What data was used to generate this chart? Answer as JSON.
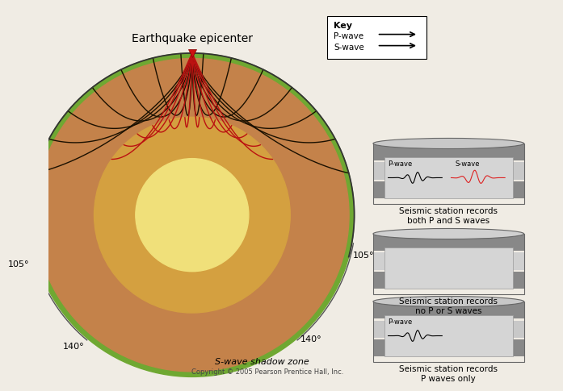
{
  "bg_color": "#f0ece4",
  "title": "Earthquake epicenter",
  "copyright": "Copyright © 2005 Pearson Prentice Hall, Inc.",
  "key_box": {
    "title": "Key",
    "p_wave_label": "P-wave",
    "s_wave_label": "S-wave"
  },
  "angle_labels": {
    "left_top": "105°",
    "left_bottom": "140°",
    "right_top": "105°",
    "right_bottom": "140°"
  },
  "shadow_label": "S-wave shadow zone",
  "earth_green": "#6fa832",
  "earth_mantle": "#c4824a",
  "earth_outer_core": "#d4a040",
  "earth_inner_core": "#f0e07a",
  "p_wave_color": "#1a1000",
  "s_wave_color": "#bb1111",
  "panels": [
    {
      "label": "Seismic station records\nboth P and S waves",
      "has_p": true,
      "has_s": true,
      "p_label": "P-wave",
      "s_label": "S-wave"
    },
    {
      "label": "Seismic station records\nno P or S waves",
      "has_p": false,
      "has_s": false,
      "p_label": "",
      "s_label": ""
    },
    {
      "label": "Seismic station records\nP waves only",
      "has_p": true,
      "has_s": false,
      "p_label": "P-wave",
      "s_label": ""
    }
  ]
}
